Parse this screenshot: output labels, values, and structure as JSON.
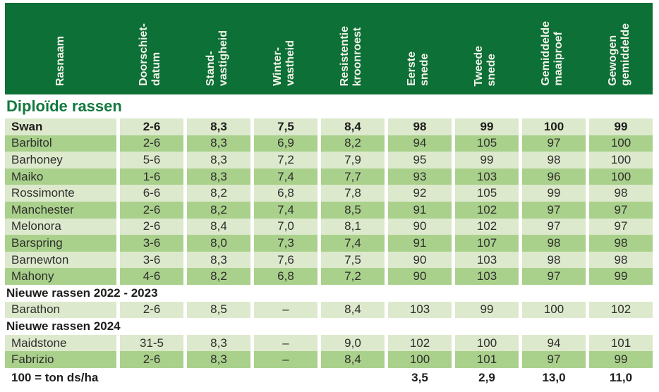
{
  "table": {
    "columns": [
      "Rasnaam",
      "Doorschiet-\ndatum",
      "Stand-\nvastigheid",
      "Winter-\nvastheid",
      "Resistentie\nkroonroest",
      "Eerste\nsnede",
      "Tweede\nsnede",
      "Gemiddelde\nmaaiproef",
      "Gewogen\ngemiddelde"
    ],
    "section_title": "Diploïde rassen",
    "rows": [
      {
        "type": "data",
        "bold": true,
        "shade": "light",
        "cells": [
          "Swan",
          "2-6",
          "8,3",
          "7,5",
          "8,4",
          "98",
          "99",
          "100",
          "99"
        ]
      },
      {
        "type": "data",
        "shade": "medium",
        "cells": [
          "Barbitol",
          "2-6",
          "8,3",
          "6,9",
          "8,2",
          "94",
          "105",
          "97",
          "100"
        ]
      },
      {
        "type": "data",
        "shade": "light",
        "cells": [
          "Barhoney",
          "5-6",
          "8,3",
          "7,2",
          "7,9",
          "95",
          "99",
          "98",
          "100"
        ]
      },
      {
        "type": "data",
        "shade": "medium",
        "cells": [
          "Maiko",
          "1-6",
          "8,3",
          "7,4",
          "7,7",
          "93",
          "103",
          "96",
          "100"
        ]
      },
      {
        "type": "data",
        "shade": "light",
        "cells": [
          "Rossimonte",
          "6-6",
          "8,2",
          "6,8",
          "7,8",
          "92",
          "105",
          "99",
          "98"
        ]
      },
      {
        "type": "data",
        "shade": "medium",
        "cells": [
          "Manchester",
          "2-6",
          "8,2",
          "7,4",
          "8,5",
          "91",
          "102",
          "97",
          "97"
        ]
      },
      {
        "type": "data",
        "shade": "light",
        "cells": [
          "Melonora",
          "2-6",
          "8,4",
          "7,0",
          "8,1",
          "90",
          "102",
          "97",
          "97"
        ]
      },
      {
        "type": "data",
        "shade": "medium",
        "cells": [
          "Barspring",
          "3-6",
          "8,0",
          "7,3",
          "7,4",
          "91",
          "107",
          "98",
          "98"
        ]
      },
      {
        "type": "data",
        "shade": "light",
        "cells": [
          "Barnewton",
          "3-6",
          "8,3",
          "7,6",
          "7,5",
          "90",
          "103",
          "98",
          "98"
        ]
      },
      {
        "type": "data",
        "shade": "medium",
        "cells": [
          "Mahony",
          "4-6",
          "8,2",
          "6,8",
          "7,2",
          "90",
          "103",
          "97",
          "99"
        ]
      },
      {
        "type": "section",
        "label": "Nieuwe rassen 2022 - 2023"
      },
      {
        "type": "data",
        "shade": "light",
        "cells": [
          "Barathon",
          "2-6",
          "8,5",
          "–",
          "8,4",
          "103",
          "99",
          "100",
          "102"
        ]
      },
      {
        "type": "section",
        "label": "Nieuwe rassen 2024"
      },
      {
        "type": "data",
        "shade": "light",
        "cells": [
          "Maidstone",
          "31-5",
          "8,3",
          "–",
          "9,0",
          "102",
          "100",
          "94",
          "101"
        ]
      },
      {
        "type": "data",
        "shade": "medium",
        "cells": [
          "Fabrizio",
          "2-6",
          "8,3",
          "–",
          "8,4",
          "100",
          "101",
          "97",
          "99"
        ]
      },
      {
        "type": "footer",
        "cells": [
          "100 = ton ds/ha",
          "",
          "",
          "",
          "",
          "3,5",
          "2,9",
          "13,0",
          "11,0"
        ]
      }
    ]
  },
  "colors": {
    "header_bg": "#0d7036",
    "header_text": "#f2f3ea",
    "row_light": "#dde9cd",
    "row_medium": "#aad18c",
    "section_title_text": "#14793f",
    "body_text": "#2f2f2d",
    "bold_text": "#1d1d1b"
  }
}
